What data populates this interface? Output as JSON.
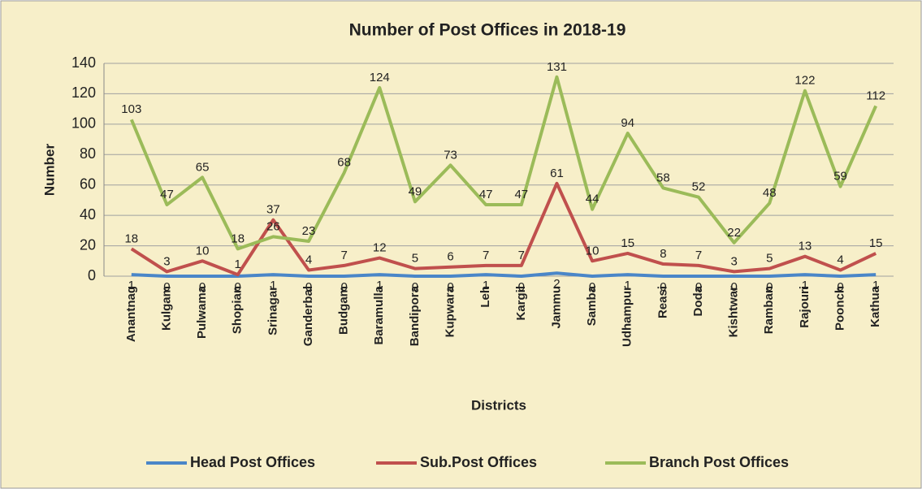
{
  "chart_data": {
    "type": "line",
    "title": "Number of Post Offices in 2018-19",
    "x_label": "Districts",
    "y_label": "Number",
    "categories": [
      "Anantnag",
      "Kulgam",
      "Pulwama",
      "Shopian",
      "Srinagar",
      "Ganderbal",
      "Budgam",
      "Baramulla",
      "Bandipora",
      "Kupwara",
      "Leh",
      "Kargil",
      "Jammu",
      "Samba",
      "Udhampur",
      "Reasi",
      "Doda",
      "Kishtwar",
      "Ramban",
      "Rajouri",
      "Poonch",
      "Kathua"
    ],
    "series": [
      {
        "name": "Head Post Offices",
        "color": "#4a86c8",
        "values": [
          1,
          0,
          0,
          0,
          1,
          0,
          0,
          1,
          0,
          0,
          1,
          0,
          2,
          0,
          1,
          0,
          0,
          0,
          0,
          1,
          0,
          1
        ]
      },
      {
        "name": "Sub.Post Offices",
        "color": "#c0504d",
        "values": [
          18,
          3,
          10,
          1,
          37,
          4,
          7,
          12,
          5,
          6,
          7,
          7,
          61,
          10,
          15,
          8,
          7,
          3,
          5,
          13,
          4,
          15
        ]
      },
      {
        "name": "Branch Post Offices",
        "color": "#9bbb59",
        "values": [
          103,
          47,
          65,
          18,
          26,
          23,
          68,
          124,
          49,
          73,
          47,
          47,
          131,
          44,
          94,
          58,
          52,
          22,
          48,
          122,
          59,
          112
        ]
      }
    ],
    "ylim": [
      0,
      140
    ],
    "yticks": [
      0,
      20,
      40,
      60,
      80,
      100,
      120,
      140
    ],
    "grid": true,
    "legend": "bottom"
  }
}
